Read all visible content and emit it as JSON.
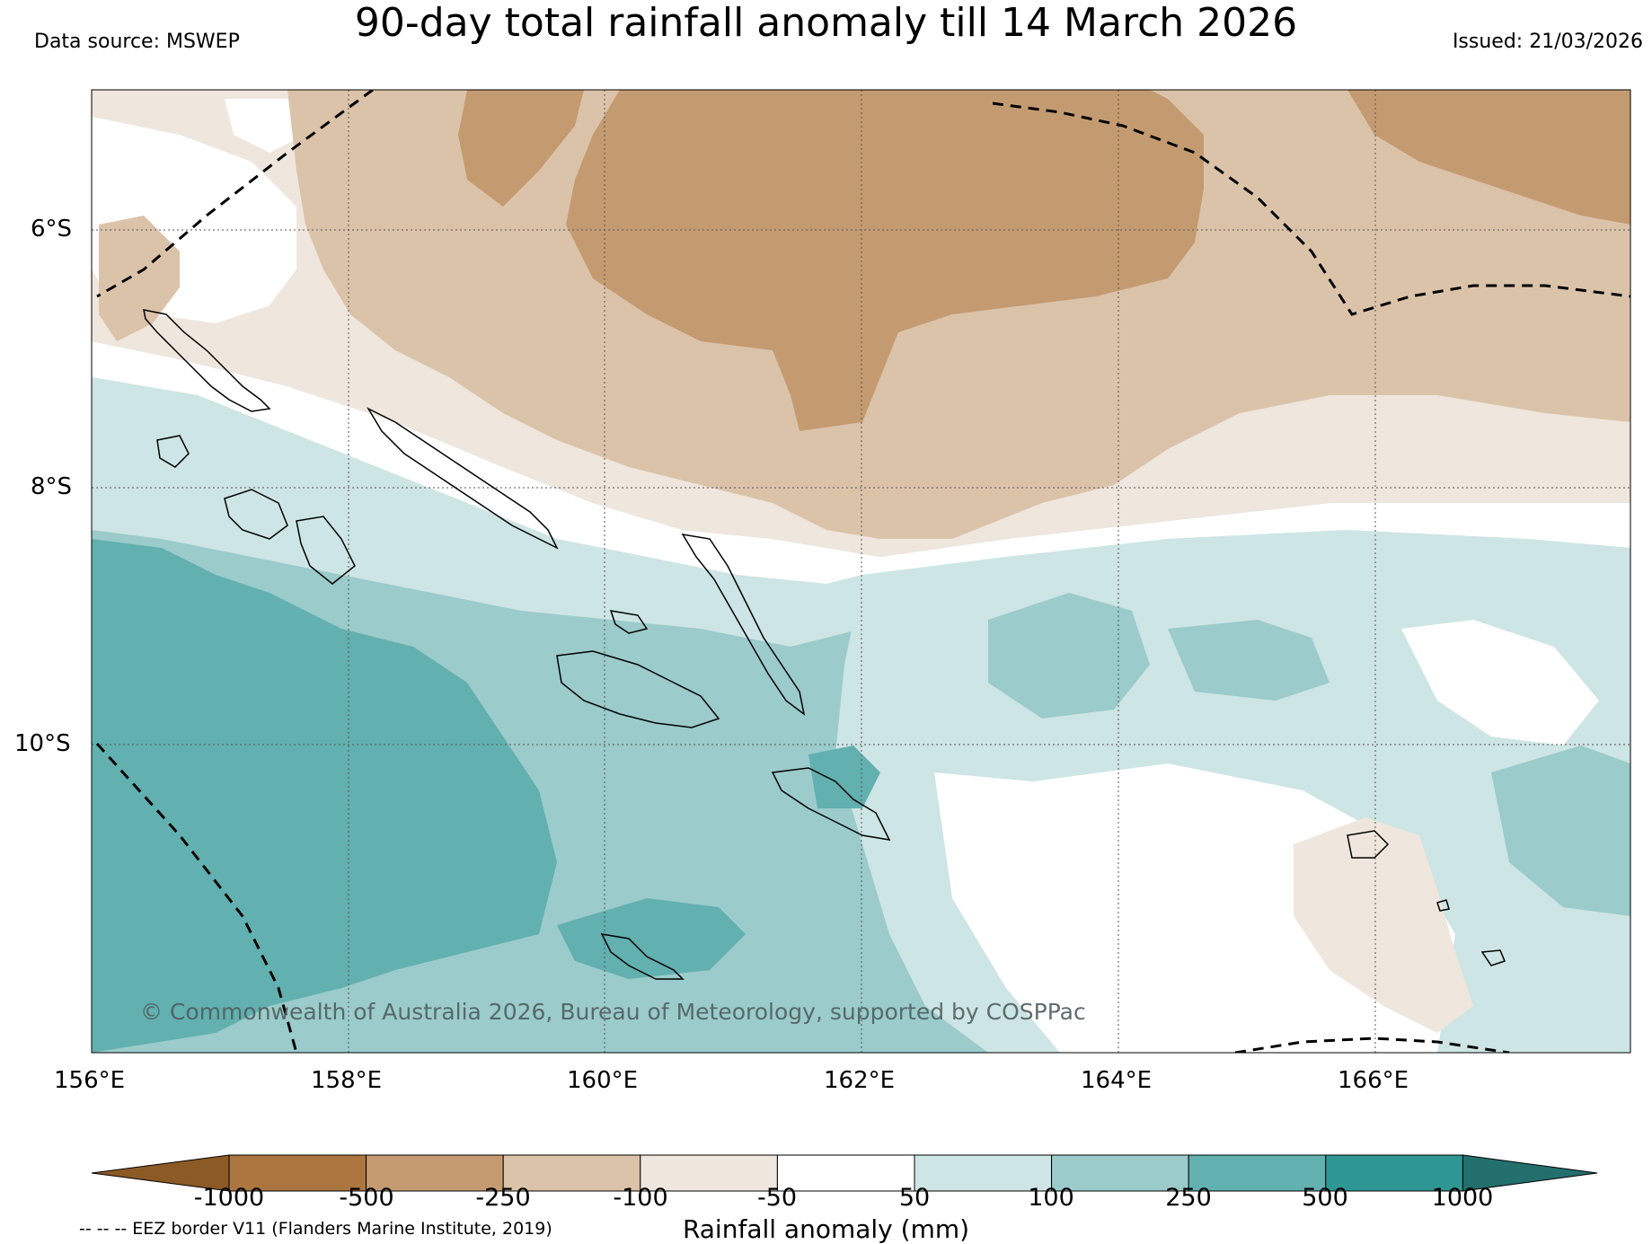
{
  "header": {
    "title": "90-day total rainfall anomaly till 14 March 2026",
    "source": "Data source: MSWEP",
    "issued": "Issued: 21/03/2026"
  },
  "map": {
    "lat_labels": [
      "6°S",
      "8°S",
      "10°S"
    ],
    "lon_labels": [
      "156°E",
      "158°E",
      "160°E",
      "162°E",
      "164°E",
      "166°E"
    ],
    "lon_range": [
      156,
      168
    ],
    "lat_range": [
      -4.9,
      -12.4
    ],
    "copyright": "© Commonwealth of Australia 2026, Bureau of Meteorology, supported by COSPPac"
  },
  "legend": {
    "colors": [
      "#8c5a24",
      "#ab763f",
      "#c49b71",
      "#dbc3aa",
      "#efe6dd",
      "#ffffff",
      "#cde5e4",
      "#9bcbcb",
      "#62b0b0",
      "#2f9793",
      "#236f6e"
    ],
    "ticks": [
      "-1000",
      "-500",
      "-250",
      "-100",
      "-50",
      "50",
      "100",
      "250",
      "500",
      "1000"
    ],
    "label": "Rainfall anomaly (mm)",
    "eez_note": "-- -- -- EEZ border V11 (Flanders Marine Institute, 2019)"
  }
}
